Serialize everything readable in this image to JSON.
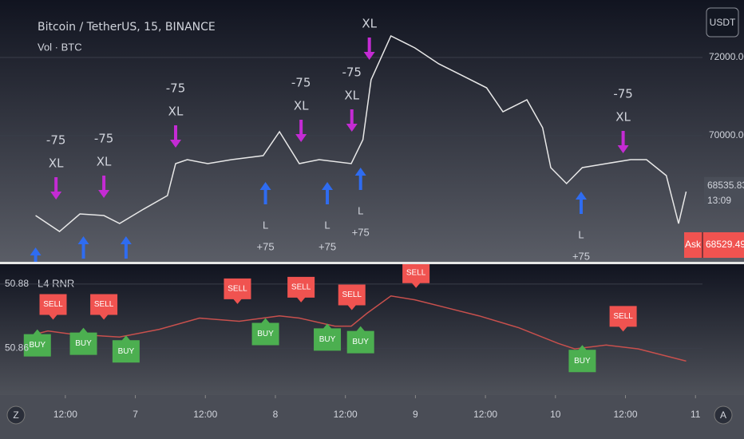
{
  "header": {
    "symbol": "Bitcoin / TetherUS, 15, BINANCE",
    "volume": "Vol · BTC",
    "currency_button": "USDT",
    "pane_label": "L4 RNR",
    "left_button": "Z",
    "right_button": "A"
  },
  "price_tags": {
    "last": {
      "value": 68535.83,
      "label": "68535.83"
    },
    "countdown": "13:09",
    "ask_label": "Ask",
    "ask": {
      "value": 68529.49,
      "label": "68529.49"
    }
  },
  "chart_data": [
    {
      "type": "line",
      "color": "#e8e8e8",
      "x": [
        6.9,
        11.0,
        14.5,
        18.6,
        21.3,
        25.4,
        29.5,
        30.9,
        32.9,
        36.4,
        40.5,
        45.9,
        48.7,
        52.1,
        55.5,
        61.0,
        63.0,
        64.4,
        67.8,
        71.9,
        76.0,
        80.1,
        84.2,
        87.0,
        91.1,
        93.8,
        95.2,
        97.9,
        100.6,
        104.7,
        108.9,
        111.6,
        115.0,
        117.1,
        118.4
      ],
      "values": [
        67959,
        67551,
        68000,
        67959,
        67755,
        68122,
        68469,
        69286,
        69388,
        69286,
        69388,
        69490,
        70102,
        69286,
        69388,
        69286,
        69898,
        71429,
        72551,
        72245,
        71837,
        71531,
        71224,
        70612,
        70918,
        70204,
        69184,
        68776,
        69184,
        69286,
        69388,
        69388,
        68980,
        67755,
        68571
      ],
      "xlim": [
        0.8,
        121.2
      ],
      "ylim": [
        66776,
        73469
      ],
      "yticks": [
        {
          "value": 72000,
          "label": "72000.00"
        },
        {
          "value": 70000,
          "label": "70000.00"
        }
      ],
      "grid": true,
      "exit_color": "#c42bd4",
      "entry_color": "#2f6cf0",
      "exits": [
        {
          "x": 10.4,
          "value": 68367,
          "labels": [
            "-75",
            "XL"
          ]
        },
        {
          "x": 18.6,
          "value": 68408,
          "labels": [
            "-75",
            "XL"
          ]
        },
        {
          "x": 30.9,
          "value": 69694,
          "labels": [
            "-75",
            "XL"
          ]
        },
        {
          "x": 52.4,
          "value": 69837,
          "labels": [
            "-75",
            "XL"
          ]
        },
        {
          "x": 61.1,
          "value": 70102,
          "labels": [
            "-75",
            "XL"
          ]
        },
        {
          "x": 64.1,
          "value": 71939,
          "labels": [
            "XL"
          ]
        },
        {
          "x": 107.6,
          "value": 69551,
          "labels": [
            "-75",
            "XL"
          ]
        }
      ],
      "entries": [
        {
          "x": 6.9,
          "value": 67143,
          "labels": []
        },
        {
          "x": 15.1,
          "value": 67429,
          "labels": []
        },
        {
          "x": 22.4,
          "value": 67429,
          "labels": []
        },
        {
          "x": 46.3,
          "value": 68816,
          "labels": [
            "L",
            "+75"
          ]
        },
        {
          "x": 56.9,
          "value": 68816,
          "labels": [
            "L",
            "+75"
          ]
        },
        {
          "x": 62.6,
          "value": 69184,
          "labels": [
            "L",
            "+75"
          ]
        },
        {
          "x": 100.4,
          "value": 68571,
          "labels": [
            "L",
            "+75"
          ]
        }
      ]
    },
    {
      "type": "line",
      "color": "#c8504d",
      "x": [
        6.9,
        9.0,
        13.1,
        21.3,
        28.1,
        35.0,
        41.8,
        48.7,
        52.1,
        58.2,
        61.0,
        63.7,
        67.8,
        71.9,
        77.4,
        82.9,
        89.7,
        96.5,
        99.3,
        104.7,
        110.2,
        118.4
      ],
      "values": [
        50.8644,
        50.8654,
        50.8644,
        50.8635,
        50.8659,
        50.8694,
        50.8684,
        50.8701,
        50.8694,
        50.8669,
        50.8669,
        50.8709,
        50.8763,
        50.8751,
        50.8726,
        50.8701,
        50.8664,
        50.8615,
        50.8598,
        50.861,
        50.8598,
        50.856
      ],
      "xlim": [
        0.8,
        121.2
      ],
      "ylim": [
        50.8454,
        50.8862
      ],
      "yticks": [
        50.88,
        50.86
      ],
      "grid": true,
      "xticks": [
        {
          "value": 12,
          "label": "12:00"
        },
        {
          "value": 24,
          "label": "7"
        },
        {
          "value": 36,
          "label": "12:00"
        },
        {
          "value": 48,
          "label": "8"
        },
        {
          "value": 60,
          "label": "12:00"
        },
        {
          "value": 72,
          "label": "9"
        },
        {
          "value": 84,
          "label": "12:00"
        },
        {
          "value": 96,
          "label": "10"
        },
        {
          "value": 108,
          "label": "12:00"
        },
        {
          "value": 120,
          "label": "11"
        }
      ],
      "sell_color": "#f05350",
      "buy_color": "#4caf50",
      "sells": [
        {
          "x": 9.9,
          "value": 50.8689,
          "label": "SELL"
        },
        {
          "x": 18.6,
          "value": 50.8689,
          "label": "SELL"
        },
        {
          "x": 41.5,
          "value": 50.8738,
          "label": "SELL"
        },
        {
          "x": 52.4,
          "value": 50.8743,
          "label": "SELL"
        },
        {
          "x": 61.1,
          "value": 50.8719,
          "label": "SELL"
        },
        {
          "x": 72.1,
          "value": 50.8788,
          "label": "SELL"
        },
        {
          "x": 107.6,
          "value": 50.8652,
          "label": "SELL"
        }
      ],
      "buys": [
        {
          "x": 7.2,
          "value": 50.8659,
          "label": "BUY"
        },
        {
          "x": 15.1,
          "value": 50.8664,
          "label": "BUY"
        },
        {
          "x": 22.4,
          "value": 50.864,
          "label": "BUY"
        },
        {
          "x": 46.3,
          "value": 50.8694,
          "label": "BUY"
        },
        {
          "x": 56.9,
          "value": 50.8677,
          "label": "BUY"
        },
        {
          "x": 62.6,
          "value": 50.8669,
          "label": "BUY"
        },
        {
          "x": 100.6,
          "value": 50.861,
          "label": "BUY"
        }
      ]
    }
  ]
}
